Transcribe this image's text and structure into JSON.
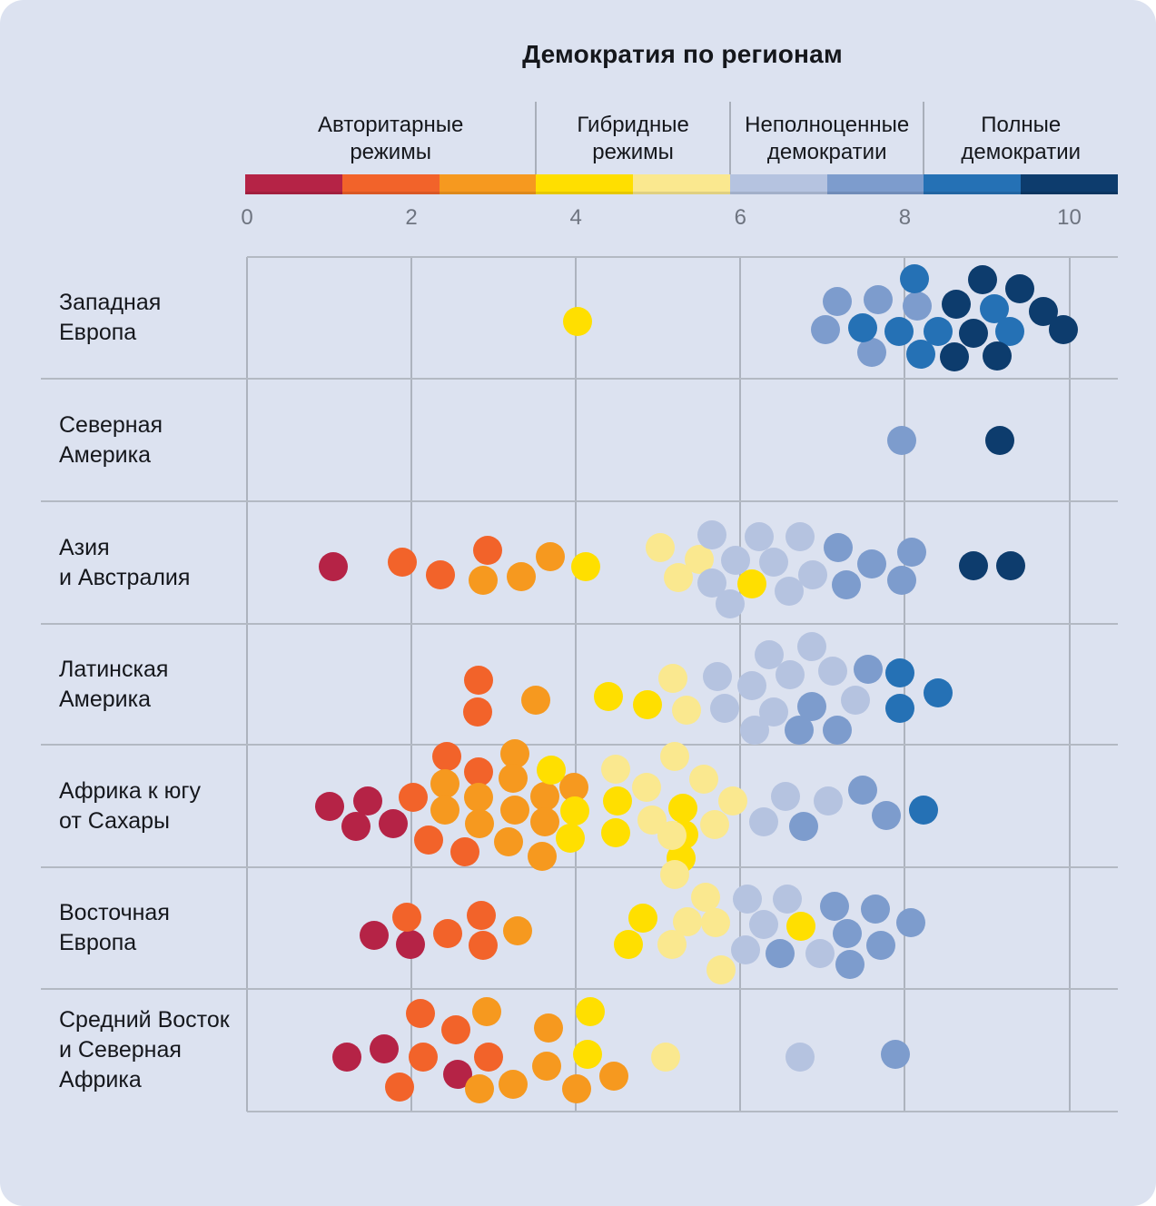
{
  "title": "Демократия по регионам",
  "colors": {
    "background": "#DCE2F0",
    "grid": "#ADB3BE",
    "tick_text": "#6E7480",
    "label_text": "#15171C",
    "palette": {
      "c0": "#B52346",
      "c1": "#F2632A",
      "c2": "#F6991F",
      "c3": "#FFDF00",
      "c4": "#FAE88F",
      "c5": "#B5C3E0",
      "c6": "#7D9CCD",
      "c7": "#2571B5",
      "c8": "#0D3C6D"
    }
  },
  "legend": {
    "categories": [
      {
        "label": "Авторитарные\nрежимы",
        "segments": [
          "c0",
          "c1",
          "c2"
        ]
      },
      {
        "label": "Гибридные\nрежимы",
        "segments": [
          "c3",
          "c4"
        ]
      },
      {
        "label": "Неполноценные\nдемократии",
        "segments": [
          "c5",
          "c6"
        ]
      },
      {
        "label": "Полные\nдемократии",
        "segments": [
          "c7",
          "c8"
        ]
      }
    ],
    "band_edges_values": [
      0,
      1.19,
      2.38,
      3.56,
      4.75,
      5.93,
      7.12,
      8.31,
      9.49,
      10.68
    ]
  },
  "chart_data": {
    "type": "scatter",
    "subtype": "beeswarm-strip",
    "title": "Демократия по регионам",
    "xlabel": "",
    "ylabel": "",
    "x_axis": {
      "min": 0,
      "max": 10.68,
      "ticks": [
        0,
        2,
        4,
        6,
        8,
        10
      ]
    },
    "grid": true,
    "dot_format": "[score_0_to_10, vertical_jitter_px, color_band]",
    "regions": [
      {
        "name": "Западная\nЕвропа",
        "dots": [
          [
            4.02,
            4,
            "c3"
          ],
          [
            7.03,
            13,
            "c6"
          ],
          [
            7.18,
            -18,
            "c6"
          ],
          [
            7.6,
            38,
            "c6"
          ],
          [
            7.68,
            -20,
            "c6"
          ],
          [
            8.15,
            -13,
            "c6"
          ],
          [
            7.49,
            11,
            "c7"
          ],
          [
            7.93,
            15,
            "c7"
          ],
          [
            8.12,
            -43,
            "c7"
          ],
          [
            8.19,
            40,
            "c7"
          ],
          [
            8.4,
            15,
            "c7"
          ],
          [
            9.09,
            -10,
            "c7"
          ],
          [
            9.28,
            15,
            "c7"
          ],
          [
            8.6,
            43,
            "c8"
          ],
          [
            8.63,
            -15,
            "c8"
          ],
          [
            8.84,
            17,
            "c8"
          ],
          [
            8.95,
            -42,
            "c8"
          ],
          [
            9.12,
            42,
            "c8"
          ],
          [
            9.4,
            -32,
            "c8"
          ],
          [
            9.68,
            -7,
            "c8"
          ],
          [
            9.93,
            13,
            "c8"
          ]
        ]
      },
      {
        "name": "Северная\nАмерика",
        "dots": [
          [
            7.96,
            0,
            "c6"
          ],
          [
            9.15,
            0,
            "c8"
          ]
        ]
      },
      {
        "name": "Азия\nи Австралия",
        "dots": [
          [
            1.05,
            4,
            "c0"
          ],
          [
            1.89,
            -1,
            "c1"
          ],
          [
            2.35,
            13,
            "c1"
          ],
          [
            2.93,
            -14,
            "c1"
          ],
          [
            2.87,
            19,
            "c2"
          ],
          [
            3.34,
            15,
            "c2"
          ],
          [
            3.69,
            -7,
            "c2"
          ],
          [
            4.12,
            4,
            "c3"
          ],
          [
            6.14,
            23,
            "c3"
          ],
          [
            5.03,
            -17,
            "c4"
          ],
          [
            5.25,
            16,
            "c4"
          ],
          [
            5.5,
            -4,
            "c4"
          ],
          [
            5.65,
            -31,
            "c5"
          ],
          [
            5.94,
            -3,
            "c5"
          ],
          [
            5.65,
            22,
            "c5"
          ],
          [
            5.88,
            45,
            "c5"
          ],
          [
            6.23,
            -29,
            "c5"
          ],
          [
            6.4,
            -1,
            "c5"
          ],
          [
            6.59,
            31,
            "c5"
          ],
          [
            6.73,
            -29,
            "c5"
          ],
          [
            6.88,
            13,
            "c5"
          ],
          [
            7.19,
            -17,
            "c6"
          ],
          [
            7.29,
            24,
            "c6"
          ],
          [
            7.6,
            1,
            "c6"
          ],
          [
            7.96,
            19,
            "c6"
          ],
          [
            8.08,
            -12,
            "c6"
          ],
          [
            8.84,
            3,
            "c8"
          ],
          [
            9.29,
            3,
            "c8"
          ]
        ]
      },
      {
        "name": "Латинская\nАмерика",
        "dots": [
          [
            2.82,
            -5,
            "c1"
          ],
          [
            2.8,
            30,
            "c1"
          ],
          [
            3.51,
            17,
            "c2"
          ],
          [
            4.4,
            13,
            "c3"
          ],
          [
            4.87,
            22,
            "c3"
          ],
          [
            5.18,
            -7,
            "c4"
          ],
          [
            5.34,
            28,
            "c4"
          ],
          [
            5.72,
            -9,
            "c5"
          ],
          [
            5.81,
            26,
            "c5"
          ],
          [
            6.14,
            1,
            "c5"
          ],
          [
            6.35,
            -33,
            "c5"
          ],
          [
            6.4,
            30,
            "c5"
          ],
          [
            6.6,
            -11,
            "c5"
          ],
          [
            6.87,
            -42,
            "c5"
          ],
          [
            7.12,
            -15,
            "c5"
          ],
          [
            7.4,
            17,
            "c5"
          ],
          [
            6.17,
            50,
            "c5"
          ],
          [
            6.87,
            24,
            "c6"
          ],
          [
            6.72,
            50,
            "c6"
          ],
          [
            7.18,
            50,
            "c6"
          ],
          [
            7.55,
            -17,
            "c6"
          ],
          [
            7.94,
            -13,
            "c7"
          ],
          [
            7.94,
            26,
            "c7"
          ],
          [
            8.4,
            9,
            "c7"
          ]
        ]
      },
      {
        "name": "Африка к югу\nот Сахары",
        "dots": [
          [
            1.01,
            0,
            "c0"
          ],
          [
            1.47,
            -6,
            "c0"
          ],
          [
            1.33,
            22,
            "c0"
          ],
          [
            1.78,
            19,
            "c0"
          ],
          [
            2.02,
            -10,
            "c1"
          ],
          [
            2.21,
            37,
            "c1"
          ],
          [
            2.43,
            -55,
            "c1"
          ],
          [
            2.65,
            50,
            "c1"
          ],
          [
            2.82,
            -38,
            "c1"
          ],
          [
            2.41,
            -25,
            "c2"
          ],
          [
            2.41,
            4,
            "c2"
          ],
          [
            2.82,
            -10,
            "c2"
          ],
          [
            2.83,
            19,
            "c2"
          ],
          [
            3.26,
            -58,
            "c2"
          ],
          [
            3.24,
            -31,
            "c2"
          ],
          [
            3.26,
            4,
            "c2"
          ],
          [
            3.18,
            39,
            "c2"
          ],
          [
            3.62,
            -11,
            "c2"
          ],
          [
            3.62,
            17,
            "c2"
          ],
          [
            3.59,
            55,
            "c2"
          ],
          [
            3.98,
            -21,
            "c2"
          ],
          [
            3.7,
            -40,
            "c3"
          ],
          [
            3.99,
            5,
            "c3"
          ],
          [
            3.93,
            35,
            "c3"
          ],
          [
            4.51,
            -6,
            "c3"
          ],
          [
            4.48,
            29,
            "c3"
          ],
          [
            5.3,
            2,
            "c3"
          ],
          [
            5.31,
            31,
            "c3"
          ],
          [
            5.28,
            57,
            "c3"
          ],
          [
            4.48,
            -41,
            "c4"
          ],
          [
            4.86,
            -21,
            "c4"
          ],
          [
            4.93,
            15,
            "c4"
          ],
          [
            5.2,
            -55,
            "c4"
          ],
          [
            5.17,
            32,
            "c4"
          ],
          [
            5.56,
            -30,
            "c4"
          ],
          [
            5.69,
            20,
            "c4"
          ],
          [
            5.91,
            -6,
            "c4"
          ],
          [
            6.28,
            17,
            "c5"
          ],
          [
            6.55,
            -11,
            "c5"
          ],
          [
            7.07,
            -6,
            "c5"
          ],
          [
            6.77,
            22,
            "c6"
          ],
          [
            7.49,
            -18,
            "c6"
          ],
          [
            7.77,
            10,
            "c6"
          ],
          [
            8.23,
            4,
            "c7"
          ]
        ]
      },
      {
        "name": "Восточная\nЕвропа",
        "dots": [
          [
            1.55,
            8,
            "c0"
          ],
          [
            1.99,
            18,
            "c0"
          ],
          [
            1.94,
            -12,
            "c1"
          ],
          [
            2.44,
            6,
            "c1"
          ],
          [
            2.85,
            -14,
            "c1"
          ],
          [
            2.87,
            19,
            "c1"
          ],
          [
            3.29,
            3,
            "c2"
          ],
          [
            4.64,
            18,
            "c3"
          ],
          [
            4.82,
            -11,
            "c3"
          ],
          [
            6.74,
            -2,
            "c3"
          ],
          [
            5.2,
            -59,
            "c4"
          ],
          [
            5.58,
            -34,
            "c4"
          ],
          [
            5.36,
            -7,
            "c4"
          ],
          [
            5.17,
            18,
            "c4"
          ],
          [
            5.7,
            -6,
            "c4"
          ],
          [
            5.76,
            46,
            "c4"
          ],
          [
            6.08,
            -32,
            "c5"
          ],
          [
            6.57,
            -32,
            "c5"
          ],
          [
            6.28,
            -4,
            "c5"
          ],
          [
            6.06,
            24,
            "c5"
          ],
          [
            6.97,
            28,
            "c5"
          ],
          [
            6.48,
            28,
            "c6"
          ],
          [
            7.14,
            -24,
            "c6"
          ],
          [
            7.3,
            6,
            "c6"
          ],
          [
            7.33,
            40,
            "c6"
          ],
          [
            7.64,
            -21,
            "c6"
          ],
          [
            7.71,
            19,
            "c6"
          ],
          [
            8.07,
            -6,
            "c6"
          ]
        ]
      },
      {
        "name": "Средний Восток\nи Северная\nАфрика",
        "dots": [
          [
            1.22,
            7,
            "c0"
          ],
          [
            1.67,
            -2,
            "c0"
          ],
          [
            2.56,
            26,
            "c0"
          ],
          [
            1.85,
            40,
            "c1"
          ],
          [
            2.11,
            -41,
            "c1"
          ],
          [
            2.14,
            7,
            "c1"
          ],
          [
            2.54,
            -23,
            "c1"
          ],
          [
            2.94,
            7,
            "c1"
          ],
          [
            2.92,
            -43,
            "c2"
          ],
          [
            2.83,
            42,
            "c2"
          ],
          [
            3.24,
            37,
            "c2"
          ],
          [
            3.67,
            -25,
            "c2"
          ],
          [
            3.64,
            17,
            "c2"
          ],
          [
            4.01,
            42,
            "c2"
          ],
          [
            4.46,
            28,
            "c2"
          ],
          [
            4.17,
            -43,
            "c3"
          ],
          [
            4.14,
            4,
            "c3"
          ],
          [
            5.09,
            7,
            "c4"
          ],
          [
            6.73,
            7,
            "c5"
          ],
          [
            7.88,
            4,
            "c6"
          ]
        ]
      }
    ]
  }
}
